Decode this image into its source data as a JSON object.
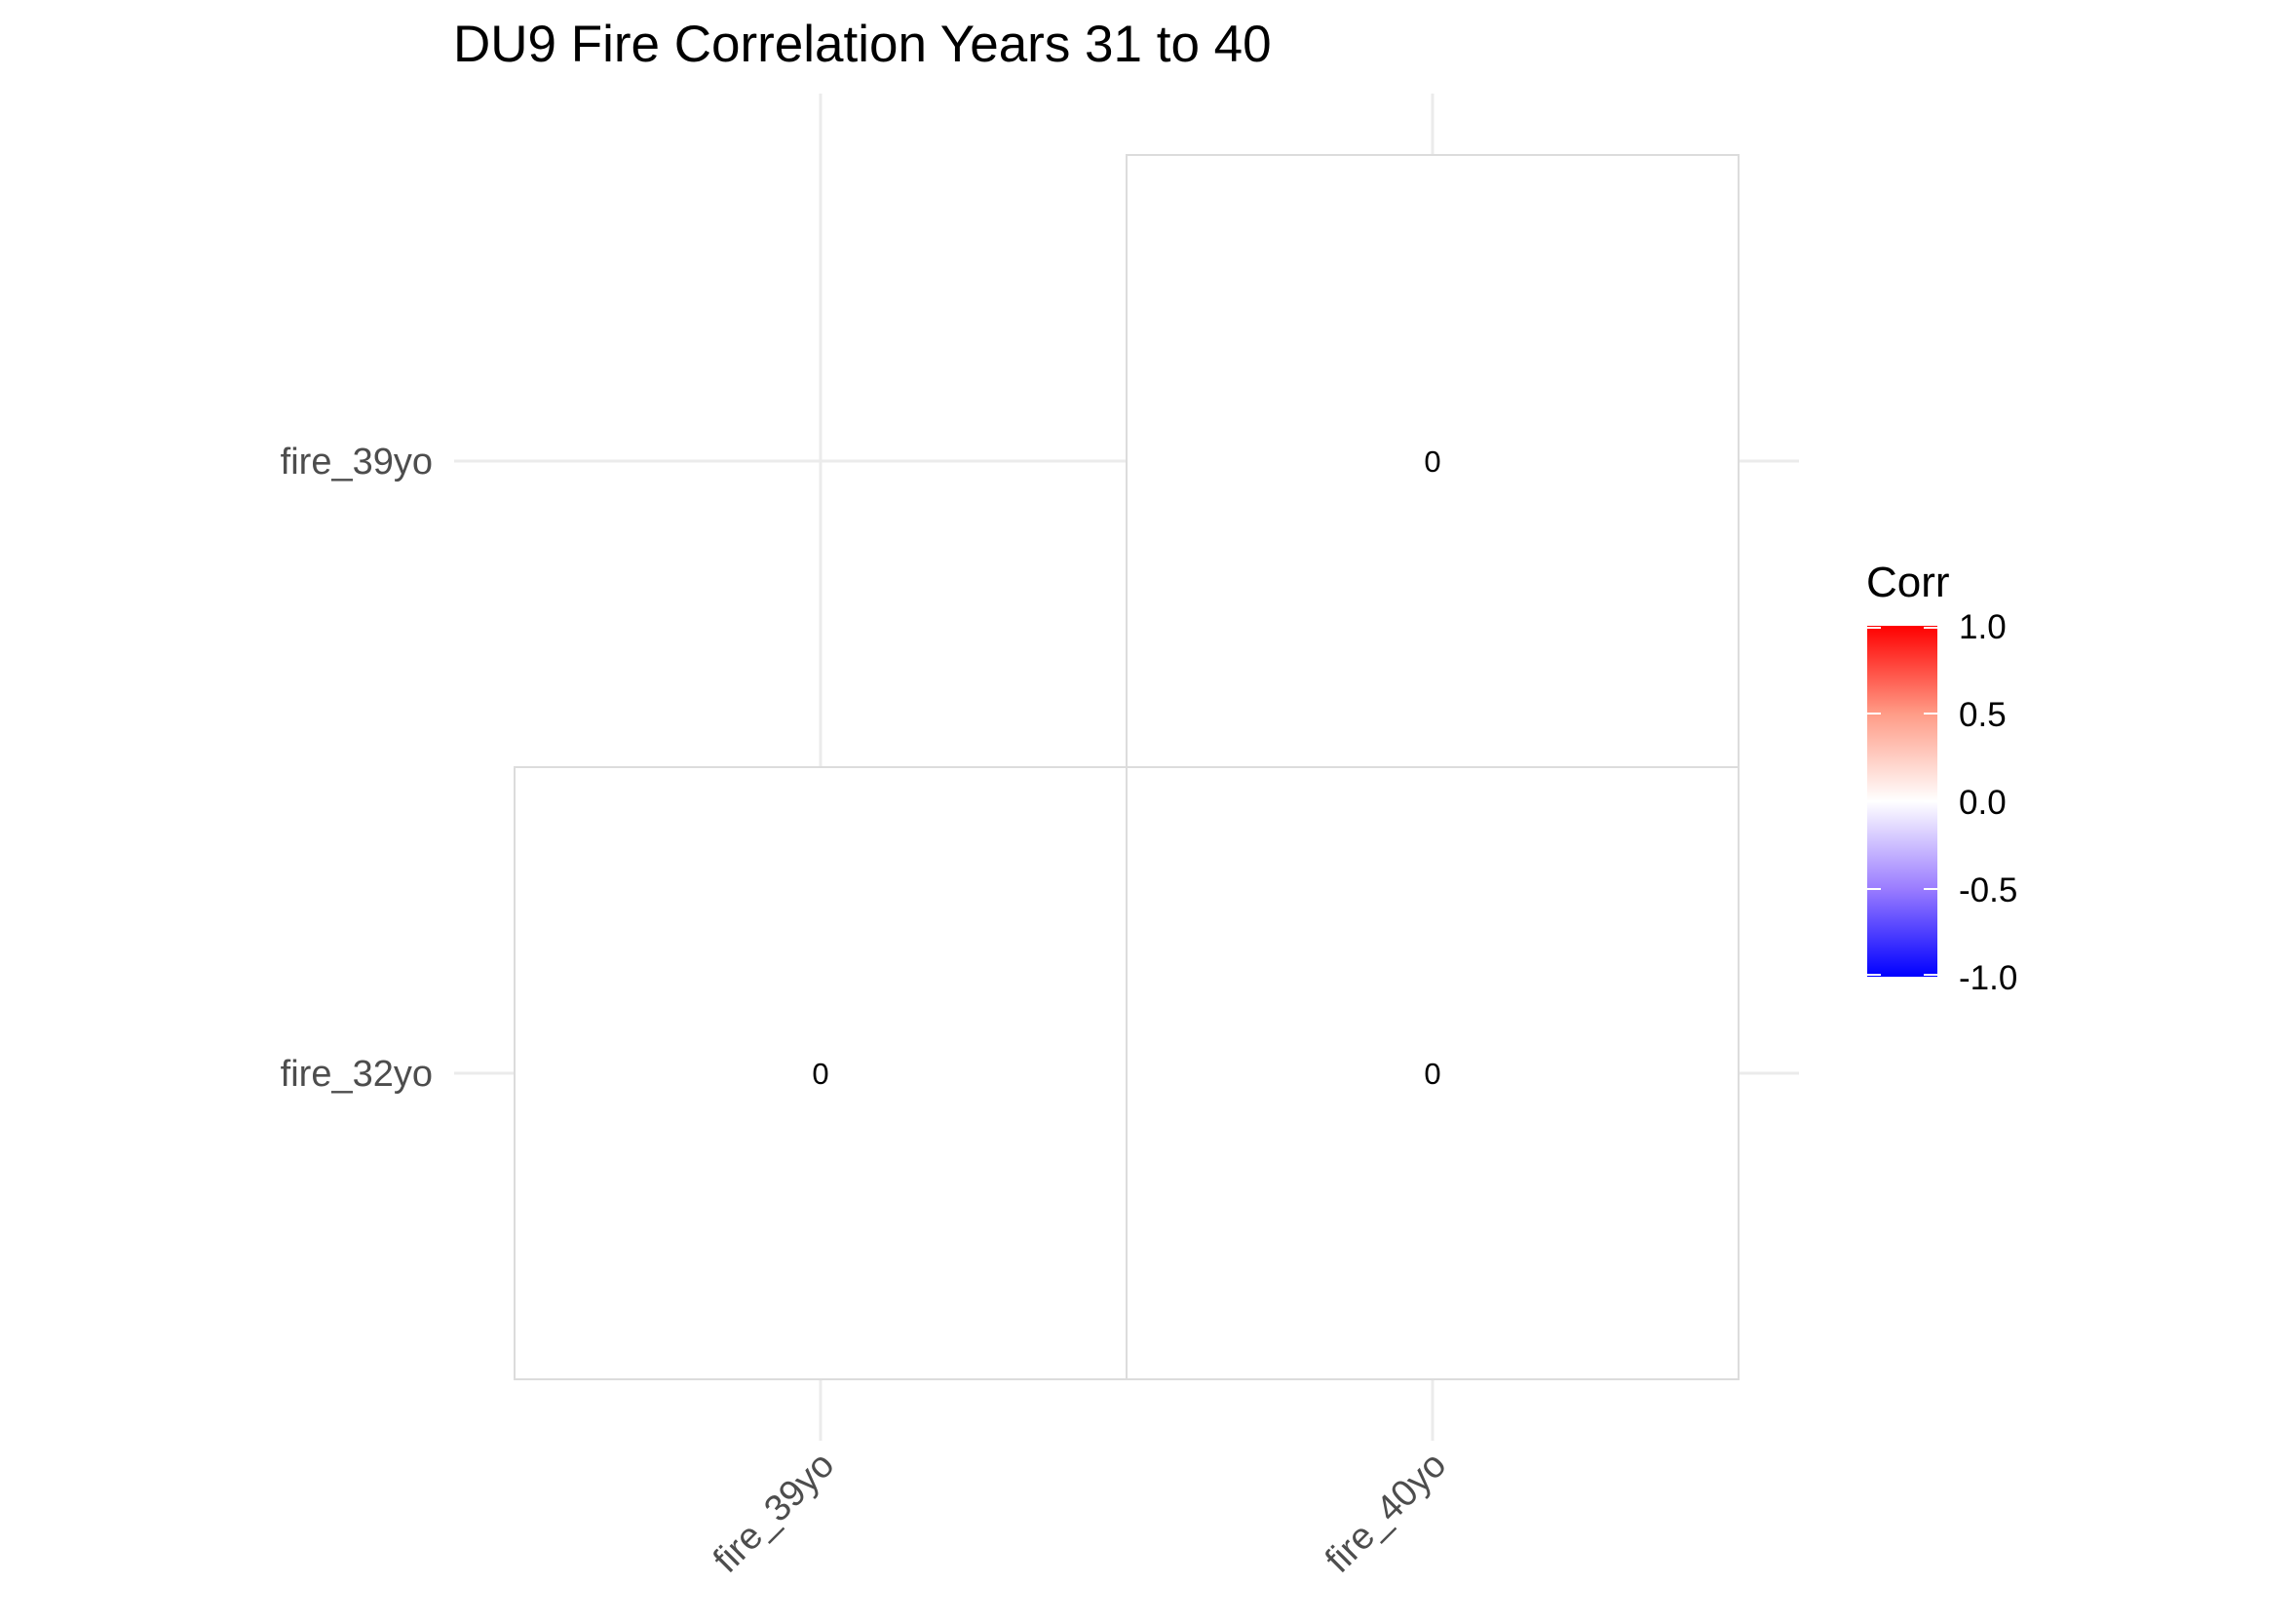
{
  "chart_data": {
    "type": "heatmap",
    "title": "DU9 Fire Correlation Years 31 to 40",
    "x_categories": [
      "fire_39yo",
      "fire_40yo"
    ],
    "y_categories": [
      "fire_32yo",
      "fire_39yo"
    ],
    "cells": [
      {
        "x": "fire_39yo",
        "y": "fire_32yo",
        "value": 0,
        "label": "0"
      },
      {
        "x": "fire_40yo",
        "y": "fire_32yo",
        "value": 0,
        "label": "0"
      },
      {
        "x": "fire_40yo",
        "y": "fire_39yo",
        "value": 0,
        "label": "0"
      }
    ],
    "legend": {
      "title": "Corr",
      "placement": "right",
      "range": [
        -1,
        1
      ],
      "ticks": [
        "1.0",
        "0.5",
        "0.0",
        "-0.5",
        "-1.0"
      ],
      "tick_values": [
        1,
        0.5,
        0,
        -0.5,
        -1
      ],
      "colors": {
        "low": "#0000ff",
        "mid": "#ffffff",
        "high": "#ff0000"
      }
    },
    "grid": true
  }
}
